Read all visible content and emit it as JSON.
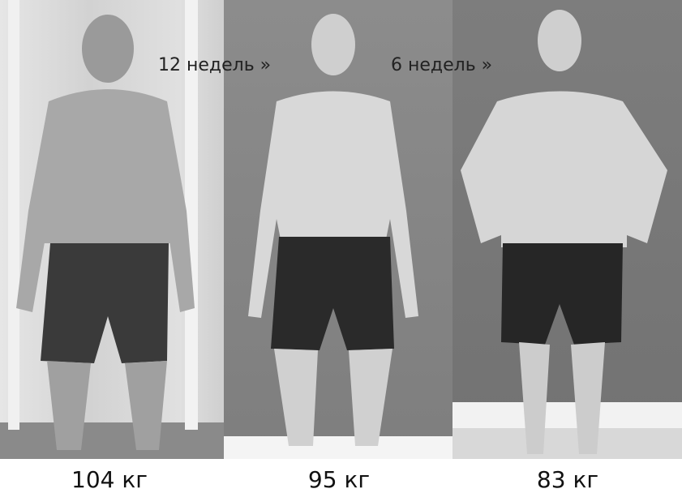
{
  "captions": {
    "interval_1": "12 недель »",
    "interval_2": "6 недель »"
  },
  "weights": [
    "104 кг",
    "95 кг",
    "83 кг"
  ],
  "colors": {
    "photo_tone": "grayscale"
  }
}
